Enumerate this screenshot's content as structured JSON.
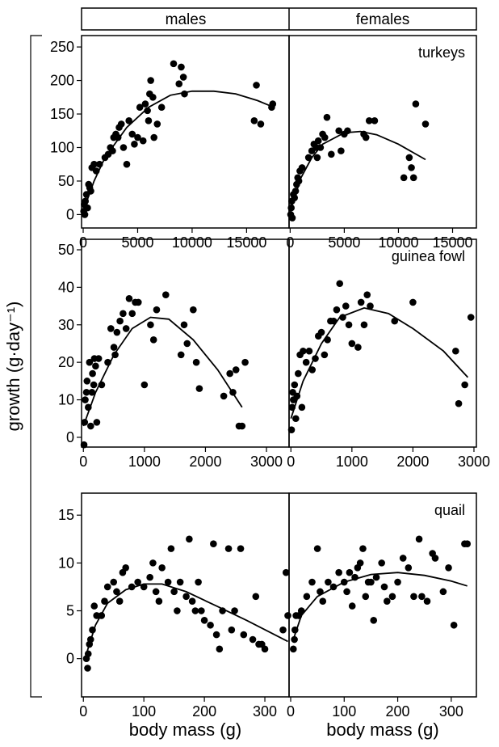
{
  "figure": {
    "columns": [
      "males",
      "females"
    ],
    "ylabel": "growth (g·day⁻¹)"
  },
  "chart_data": [
    {
      "type": "scatter",
      "xlim": [
        -150,
        18900
      ],
      "ylim": [
        -20,
        267
      ],
      "xticks": [
        0,
        5000,
        10000,
        15000
      ],
      "yticks": [
        0,
        50,
        100,
        150,
        200,
        250
      ],
      "points": {
        "x": [
          50,
          100,
          150,
          200,
          300,
          400,
          500,
          600,
          700,
          800,
          1000,
          1200,
          1500,
          2000,
          2300,
          2500,
          2700,
          2800,
          3000,
          3200,
          3300,
          3500,
          3700,
          4000,
          4200,
          4500,
          4700,
          5000,
          5200,
          5500,
          5700,
          5900,
          6000,
          6100,
          6200,
          6400,
          6500,
          6800,
          7200,
          8300,
          8800,
          9000,
          9200,
          9300,
          15700,
          15900,
          16300,
          17300,
          17400
        ],
        "y": [
          5,
          15,
          0,
          20,
          30,
          10,
          45,
          40,
          35,
          70,
          75,
          65,
          75,
          85,
          90,
          100,
          95,
          115,
          120,
          115,
          130,
          135,
          100,
          75,
          140,
          120,
          105,
          115,
          160,
          110,
          165,
          155,
          140,
          180,
          200,
          175,
          115,
          135,
          160,
          225,
          195,
          220,
          205,
          180,
          140,
          193,
          135,
          160,
          165
        ]
      },
      "fit": {
        "x": [
          0,
          1000,
          2000,
          4000,
          6000,
          8000,
          10000,
          12000,
          14000,
          16000,
          17500
        ],
        "y": [
          5,
          50,
          85,
          130,
          160,
          178,
          184,
          184,
          180,
          170,
          160
        ]
      }
    },
    {
      "type": "scatter",
      "label": "turkeys",
      "xlim": [
        -100,
        17200
      ],
      "ylim": [
        -20,
        267
      ],
      "xticks": [
        0,
        5000,
        10000,
        15000
      ],
      "points": {
        "x": [
          50,
          100,
          150,
          200,
          300,
          400,
          500,
          600,
          700,
          800,
          900,
          1100,
          1700,
          2000,
          2200,
          2400,
          2500,
          2600,
          2800,
          3000,
          3200,
          3400,
          3800,
          4500,
          4700,
          5000,
          5300,
          6800,
          7000,
          7300,
          7800,
          10500,
          11000,
          11200,
          11400,
          11600,
          12500
        ],
        "y": [
          0,
          10,
          20,
          -5,
          30,
          25,
          35,
          45,
          55,
          50,
          65,
          70,
          85,
          95,
          105,
          100,
          85,
          110,
          100,
          120,
          115,
          145,
          90,
          125,
          95,
          120,
          125,
          120,
          115,
          140,
          140,
          55,
          85,
          70,
          55,
          165,
          135
        ]
      },
      "fit": {
        "x": [
          0,
          1000,
          2000,
          3000,
          5000,
          6500,
          8000,
          10000,
          12500
        ],
        "y": [
          5,
          55,
          85,
          105,
          122,
          124,
          119,
          105,
          82
        ]
      }
    },
    {
      "type": "scatter",
      "xlim": [
        -30,
        3370
      ],
      "ylim": [
        -2.6,
        52.8
      ],
      "xticks": [
        0,
        1000,
        2000,
        3000
      ],
      "yticks": [
        0,
        10,
        20,
        30,
        40,
        50
      ],
      "points": {
        "x": [
          10,
          20,
          30,
          50,
          60,
          80,
          100,
          120,
          140,
          150,
          170,
          180,
          200,
          220,
          250,
          300,
          400,
          450,
          500,
          520,
          550,
          600,
          650,
          700,
          750,
          800,
          850,
          900,
          1000,
          1100,
          1150,
          1200,
          1350,
          1600,
          1650,
          1700,
          1800,
          1850,
          1900,
          2300,
          2400,
          2450,
          2500,
          2550,
          2600,
          2650
        ],
        "y": [
          -2,
          4,
          10,
          12,
          15,
          8,
          20,
          3,
          12,
          17,
          14,
          21,
          19,
          4,
          21,
          14,
          20,
          29,
          24,
          22,
          28,
          31,
          33,
          29,
          37,
          33,
          36,
          36,
          14,
          30,
          26,
          34,
          38,
          22,
          30,
          25,
          34,
          20,
          13,
          11,
          17,
          12,
          18,
          3,
          3,
          20
        ]
      },
      "fit": {
        "x": [
          0,
          200,
          500,
          800,
          1100,
          1400,
          1800,
          2200,
          2600
        ],
        "y": [
          3,
          12,
          22,
          29,
          32,
          31.5,
          26,
          18,
          8
        ]
      }
    },
    {
      "type": "scatter",
      "label": "guinea fowl",
      "xlim": [
        -30,
        3040
      ],
      "ylim": [
        -2.6,
        52.8
      ],
      "xticks": [
        0,
        1000,
        2000,
        3000
      ],
      "points": {
        "x": [
          10,
          20,
          30,
          40,
          60,
          80,
          100,
          120,
          150,
          180,
          200,
          250,
          300,
          350,
          400,
          450,
          500,
          550,
          600,
          650,
          700,
          750,
          800,
          850,
          900,
          950,
          1000,
          1100,
          1150,
          1200,
          1250,
          1300,
          1700,
          2000,
          2700,
          2750,
          2850,
          2950
        ],
        "y": [
          2,
          8,
          12,
          10,
          14,
          5,
          11,
          17,
          22,
          8,
          23,
          20,
          23,
          18,
          21,
          27,
          28,
          22,
          26,
          31,
          31,
          34,
          41,
          32,
          35,
          30,
          25,
          24,
          36,
          30,
          38,
          35,
          31,
          36,
          23,
          9,
          14,
          32
        ]
      },
      "fit": {
        "x": [
          0,
          200,
          500,
          800,
          1200,
          1600,
          2000,
          2500,
          2900
        ],
        "y": [
          5,
          15,
          25,
          32,
          34.5,
          33,
          29,
          23,
          16
        ]
      }
    },
    {
      "type": "scatter",
      "xlim": [
        -3,
        340
      ],
      "ylim": [
        -4,
        17.3
      ],
      "xlabel": "body mass (g)",
      "xticks": [
        0,
        100,
        200,
        300
      ],
      "yticks": [
        0,
        5,
        10,
        15
      ],
      "points": {
        "x": [
          5,
          7,
          8,
          10,
          12,
          15,
          18,
          22,
          30,
          35,
          40,
          50,
          55,
          60,
          65,
          70,
          80,
          90,
          100,
          110,
          115,
          120,
          125,
          130,
          140,
          145,
          150,
          155,
          160,
          170,
          175,
          180,
          185,
          190,
          195,
          200,
          210,
          215,
          220,
          225,
          230,
          240,
          245,
          250,
          260,
          265,
          280,
          285,
          290,
          295,
          300,
          330,
          335,
          338
        ],
        "y": [
          0,
          -1,
          0.5,
          1.5,
          2,
          3,
          5.5,
          4.5,
          4.5,
          6,
          7.5,
          8,
          7,
          6,
          9,
          9.5,
          7.5,
          8,
          7.5,
          8.5,
          10,
          7,
          6,
          9.5,
          8,
          11.5,
          7,
          5,
          8,
          6.5,
          12.5,
          6,
          5,
          8,
          5,
          4,
          3.5,
          12,
          2.5,
          1,
          5,
          11.5,
          3,
          5,
          11.5,
          2.5,
          2,
          6.5,
          1.5,
          1.5,
          1,
          3,
          9,
          4.5
        ]
      },
      "fit": {
        "x": [
          5,
          20,
          40,
          70,
          100,
          130,
          170,
          220,
          270,
          338
        ],
        "y": [
          0.5,
          3.5,
          5.8,
          7.2,
          7.8,
          7.8,
          7,
          5.5,
          4,
          1.8
        ]
      }
    },
    {
      "type": "scatter",
      "label": "quail",
      "xlim": [
        -3,
        347
      ],
      "ylim": [
        -4,
        17.3
      ],
      "xlabel": "body mass (g)",
      "xticks": [
        0,
        100,
        200,
        300
      ],
      "points": {
        "x": [
          5,
          7,
          8,
          10,
          15,
          20,
          30,
          40,
          50,
          55,
          60,
          70,
          80,
          90,
          100,
          105,
          110,
          115,
          120,
          125,
          130,
          135,
          140,
          145,
          150,
          155,
          160,
          170,
          175,
          180,
          190,
          200,
          210,
          220,
          230,
          240,
          245,
          255,
          265,
          270,
          285,
          295,
          305,
          325,
          330
        ],
        "y": [
          1,
          2,
          3,
          4.5,
          4.5,
          5,
          6.5,
          8,
          11.5,
          7,
          6,
          8,
          7.5,
          9,
          8,
          7,
          9,
          5.5,
          8.5,
          9.5,
          10,
          11.5,
          6.5,
          8,
          8,
          4,
          8.5,
          10,
          7.5,
          6,
          6.5,
          8,
          10.5,
          9.5,
          6.5,
          12.5,
          6.5,
          6,
          11,
          10.5,
          7,
          9.5,
          3.5,
          12,
          12
        ]
      },
      "fit": {
        "x": [
          5,
          20,
          50,
          100,
          150,
          200,
          250,
          300,
          330
        ],
        "y": [
          2,
          4.5,
          6.5,
          8,
          8.8,
          9,
          8.7,
          8.1,
          7.6
        ]
      }
    }
  ]
}
